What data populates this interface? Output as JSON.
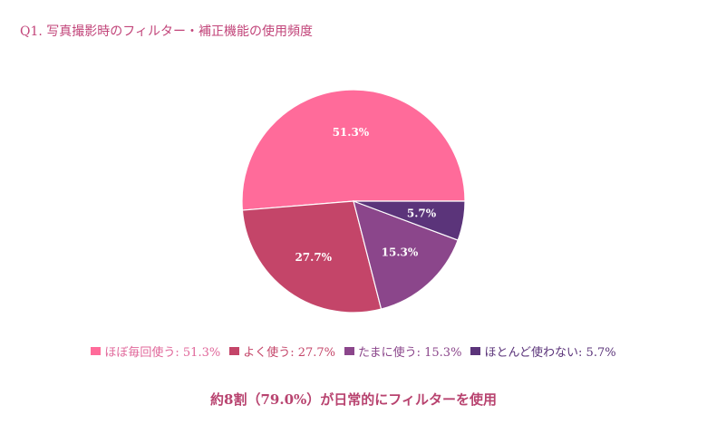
{
  "title": "Q1. 写真撮影時のフィルター・補正機能の使用頻度",
  "summary": "約8割（79.0%）が日常的にフィルターを使用",
  "legend": [
    {
      "label": "ほぼ毎回使う: 51.3%",
      "color": "#ff6b9a",
      "text_color": "#e0679a"
    },
    {
      "label": "よく使う: 27.7%",
      "color": "#c44569",
      "text_color": "#c44569"
    },
    {
      "label": "たまに使う: 15.3%",
      "color": "#8b468b",
      "text_color": "#8b468b"
    },
    {
      "label": "ほとんど使わない: 5.7%",
      "color": "#5b347a",
      "text_color": "#5b347a"
    }
  ],
  "chart_data": {
    "type": "pie",
    "title": "Q1. 写真撮影時のフィルター・補正機能の使用頻度",
    "categories": [
      "ほぼ毎回使う",
      "よく使う",
      "たまに使う",
      "ほとんど使わない"
    ],
    "values": [
      51.3,
      27.7,
      15.3,
      5.7
    ],
    "labels": [
      "51.3%",
      "27.7%",
      "15.3%",
      "5.7%"
    ],
    "colors": [
      "#ff6b9a",
      "#c44569",
      "#8b468b",
      "#5b347a"
    ],
    "start_angle": 0,
    "direction": "counterclockwise",
    "legend_position": "bottom",
    "center": [
      390,
      222
    ],
    "radius": 123,
    "annotation": "約8割（79.0%）が日常的にフィルターを使用"
  }
}
